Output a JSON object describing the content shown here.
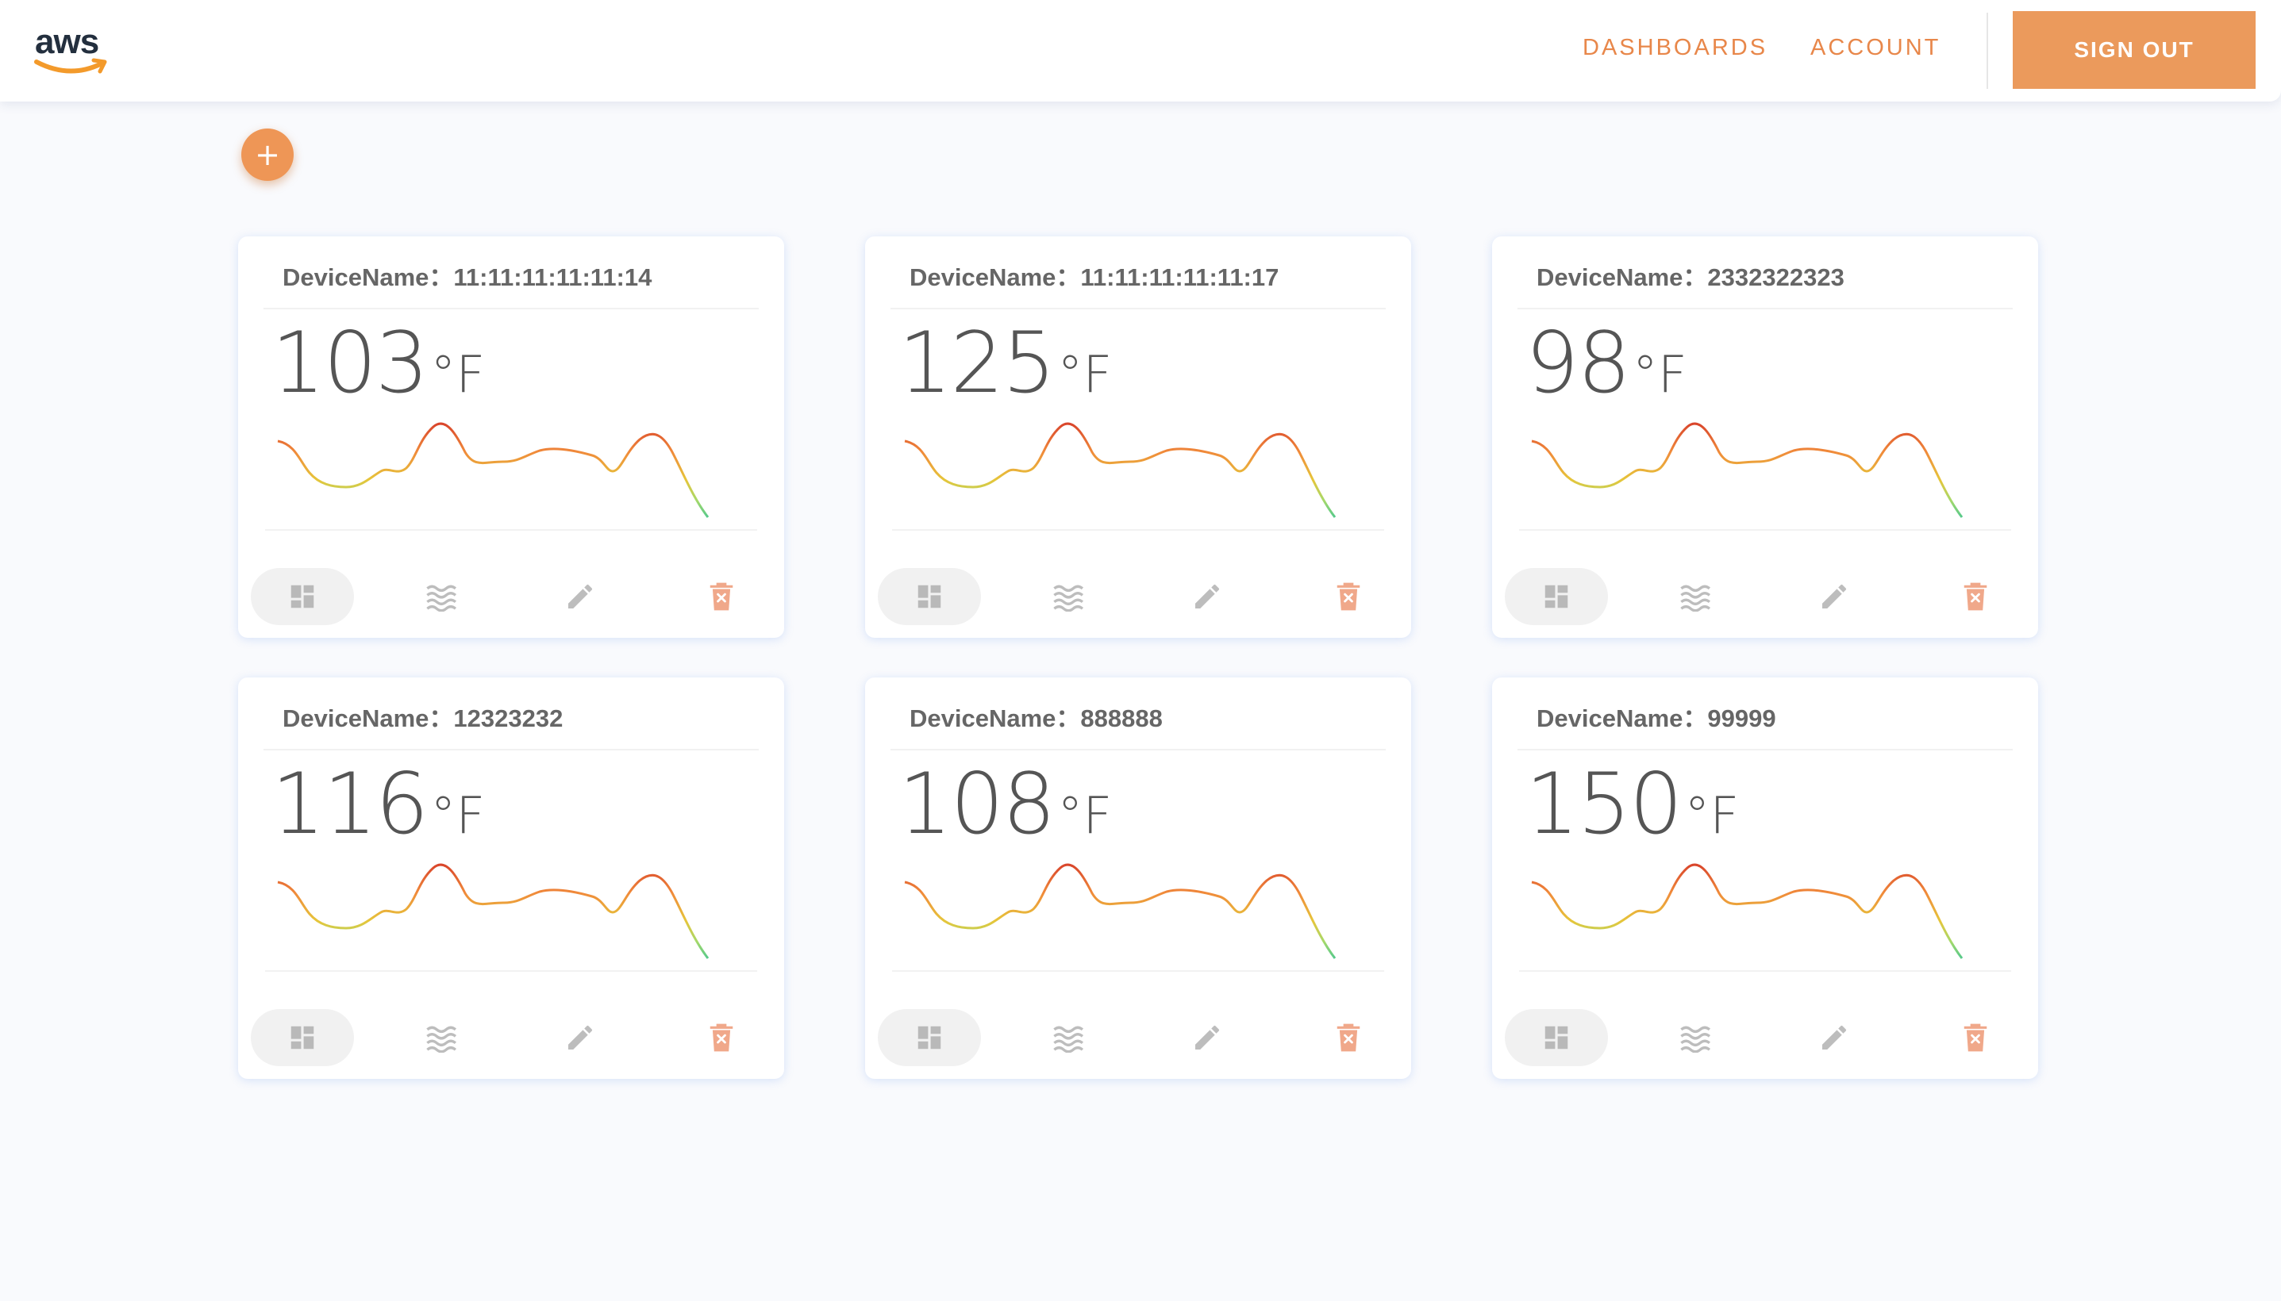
{
  "header": {
    "logo_text": "aws",
    "nav": {
      "dashboards": "DASHBOARDS",
      "account": "ACCOUNT"
    },
    "sign_out": "SIGN OUT"
  },
  "add_button": {
    "label": "+"
  },
  "device_label": "DeviceName：",
  "unit": "°F",
  "colors": {
    "accent": "#eb9a5c",
    "nav_text": "#e8874a",
    "delete_icon": "#f0a88a",
    "muted_icon": "#bdbdbd",
    "sparkline_gradient": [
      "#d9452b",
      "#f08a3a",
      "#e6c53a",
      "#a6d96a",
      "#55c98b"
    ]
  },
  "icons": {
    "dashboard": "dashboard-icon",
    "waves": "waves-icon",
    "edit": "pencil-icon",
    "delete": "delete-icon"
  },
  "devices": [
    {
      "name": "11:11:11:11:11:14",
      "temperature": "103"
    },
    {
      "name": "11:11:11:11:11:17",
      "temperature": "125"
    },
    {
      "name": "2332322323",
      "temperature": "98"
    },
    {
      "name": "12323232",
      "temperature": "116"
    },
    {
      "name": "888888",
      "temperature": "108"
    },
    {
      "name": "99999",
      "temperature": "150"
    }
  ]
}
